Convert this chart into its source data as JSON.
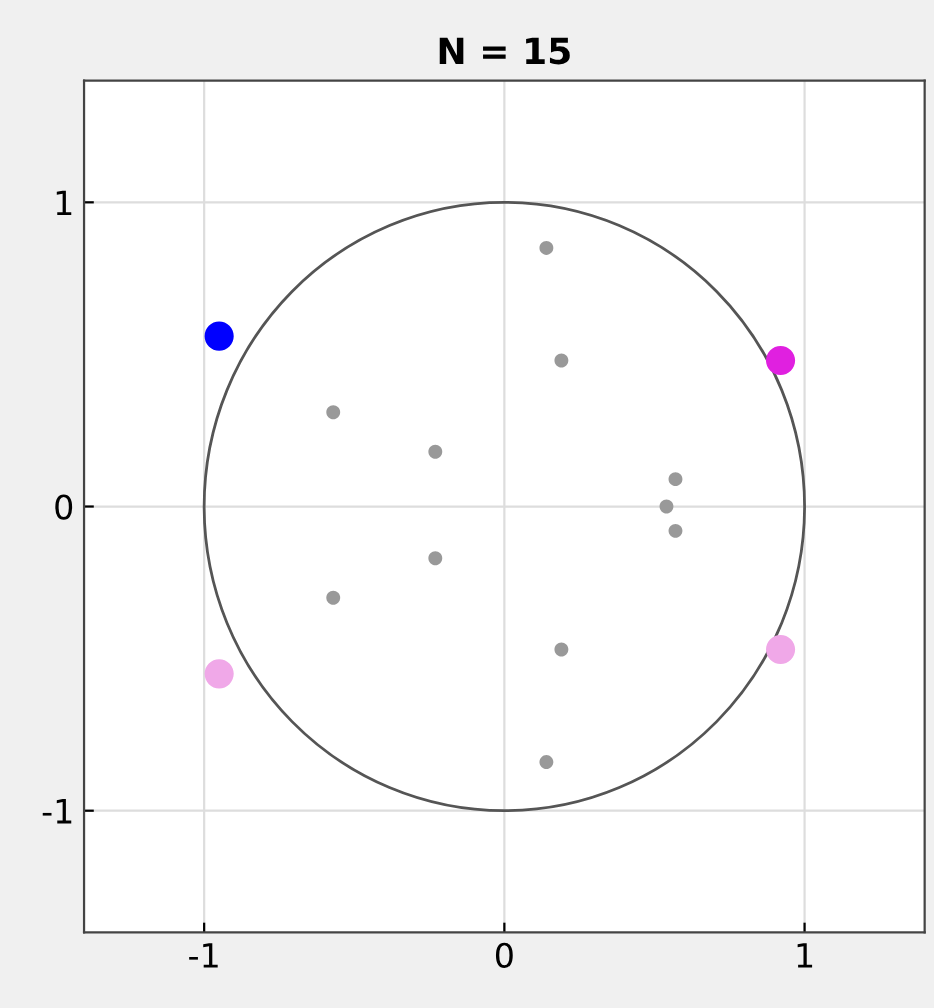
{
  "chart_data": {
    "type": "scatter",
    "title": "N = 15",
    "xlim": [
      -1.4,
      1.4
    ],
    "ylim": [
      -1.4,
      1.4
    ],
    "xticks": [
      -1,
      0,
      1
    ],
    "yticks": [
      -1,
      0,
      1
    ],
    "grid": true,
    "marker": "circle",
    "series": [
      {
        "color": "#999999",
        "x": [
          0.14,
          0.19,
          -0.57,
          -0.23,
          0.57,
          0.54,
          0.57,
          -0.23,
          -0.57,
          0.19,
          0.14
        ],
        "values": [
          0.85,
          0.48,
          0.31,
          0.18,
          0.09,
          0.0,
          -0.08,
          -0.17,
          -0.3,
          -0.47,
          -0.84
        ]
      },
      {
        "color": "#0000ff",
        "x": [
          -0.95
        ],
        "values": [
          0.56
        ]
      },
      {
        "color": "#e020e0",
        "x": [
          0.92
        ],
        "values": [
          0.48
        ]
      },
      {
        "color": "#f0a8e8",
        "x": [
          -0.95,
          0.92
        ],
        "values": [
          -0.55,
          -0.47
        ]
      }
    ]
  }
}
